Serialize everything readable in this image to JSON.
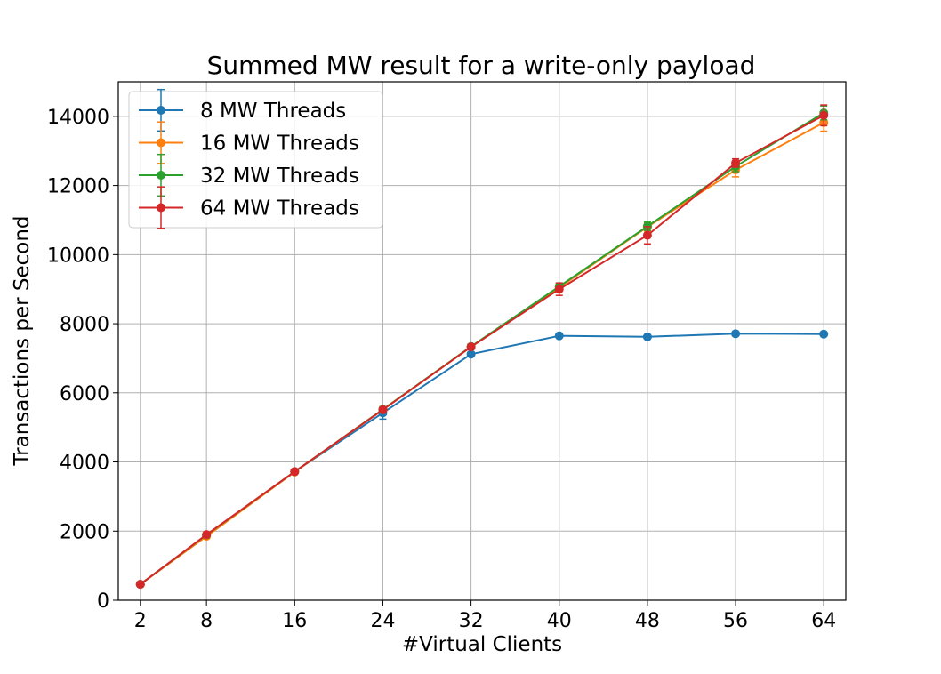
{
  "chart_data": {
    "type": "line",
    "title": "Summed MW result for a write-only payload",
    "xlabel": "#Virtual Clients",
    "ylabel": "Transactions per Second",
    "x": [
      2,
      8,
      16,
      24,
      32,
      40,
      48,
      56,
      64
    ],
    "xlim": [
      0,
      66
    ],
    "ylim": [
      0,
      15000
    ],
    "xticks": [
      2,
      8,
      16,
      24,
      32,
      40,
      48,
      56,
      64
    ],
    "yticks": [
      0,
      2000,
      4000,
      6000,
      8000,
      10000,
      12000,
      14000
    ],
    "grid": true,
    "legend_position": "top-left",
    "series": [
      {
        "name": "8 MW Threads",
        "color": "#1f77b4",
        "values": [
          460,
          1880,
          3720,
          5420,
          7120,
          7650,
          7620,
          7710,
          7700
        ],
        "errors": [
          30,
          40,
          50,
          180,
          60,
          40,
          40,
          40,
          40
        ]
      },
      {
        "name": "16 MW Threads",
        "color": "#ff7f0e",
        "values": [
          460,
          1850,
          3710,
          5510,
          7330,
          9050,
          10800,
          12450,
          13820
        ],
        "errors": [
          30,
          40,
          50,
          80,
          70,
          100,
          120,
          200,
          250
        ]
      },
      {
        "name": "32 MW Threads",
        "color": "#2ca02c",
        "values": [
          460,
          1890,
          3720,
          5520,
          7340,
          9080,
          10820,
          12550,
          14100
        ],
        "errors": [
          30,
          40,
          50,
          80,
          70,
          100,
          120,
          150,
          200
        ]
      },
      {
        "name": "64 MW Threads",
        "color": "#d62728",
        "values": [
          460,
          1900,
          3720,
          5510,
          7330,
          9000,
          10560,
          12650,
          14030
        ],
        "errors": [
          30,
          40,
          50,
          80,
          70,
          180,
          250,
          120,
          300
        ]
      }
    ],
    "legend_error_bar_extent": 600
  }
}
